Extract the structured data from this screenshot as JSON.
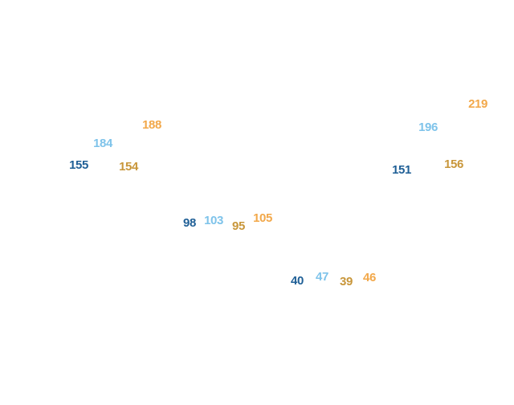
{
  "chart_data": {
    "type": "scatter",
    "title": "",
    "xlabel": "",
    "ylabel": "",
    "grid": false,
    "legend": "none",
    "categories": [
      "1",
      "2",
      "3",
      "4"
    ],
    "ylim": [
      0,
      250
    ],
    "series": [
      {
        "color": "#1f5f96",
        "values": [
          155,
          98,
          40,
          151
        ]
      },
      {
        "color": "#7ec3ea",
        "values": [
          184,
          103,
          47,
          196
        ]
      },
      {
        "color": "#c8963a",
        "values": [
          154,
          95,
          39,
          156
        ]
      },
      {
        "color": "#f2a84a",
        "values": [
          188,
          105,
          46,
          219
        ]
      }
    ]
  }
}
